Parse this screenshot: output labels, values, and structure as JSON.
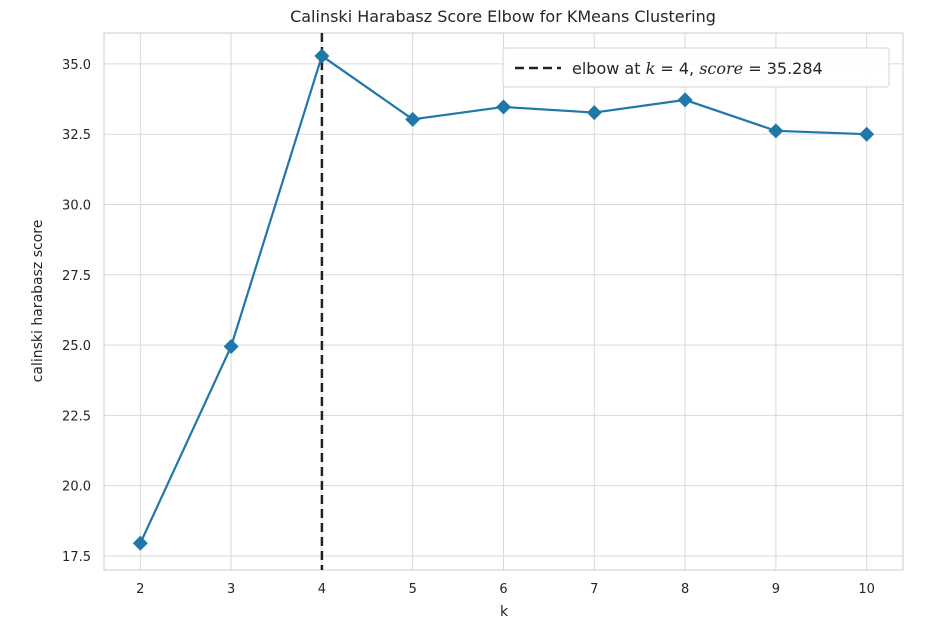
{
  "chart_data": {
    "type": "line",
    "title": "Calinski Harabasz Score Elbow for KMeans Clustering",
    "xlabel": "k",
    "ylabel": "calinski harabasz score",
    "x": [
      2,
      3,
      4,
      5,
      6,
      7,
      8,
      9,
      10
    ],
    "series": [
      {
        "values": [
          17.95,
          24.95,
          35.284,
          33.03,
          33.47,
          33.27,
          33.72,
          32.62,
          32.5
        ],
        "color": "#1f78a8",
        "marker": "diamond"
      }
    ],
    "xticks": [
      "2",
      "3",
      "4",
      "5",
      "6",
      "7",
      "8",
      "9",
      "10"
    ],
    "yticks": [
      "17.5",
      "20.0",
      "22.5",
      "25.0",
      "27.5",
      "30.0",
      "32.5",
      "35.0"
    ],
    "xlim": [
      1.6,
      10.4
    ],
    "ylim": [
      17.0,
      36.1
    ],
    "grid": true,
    "elbow": {
      "k": 4,
      "line_style": "dashed",
      "line_color": "#222222"
    },
    "legend": {
      "position": "top-right",
      "prefix": "elbow at ",
      "k_symbol": "k",
      "k_expr": " = 4, ",
      "score_symbol": "score",
      "score_expr": " = 35.284"
    }
  }
}
